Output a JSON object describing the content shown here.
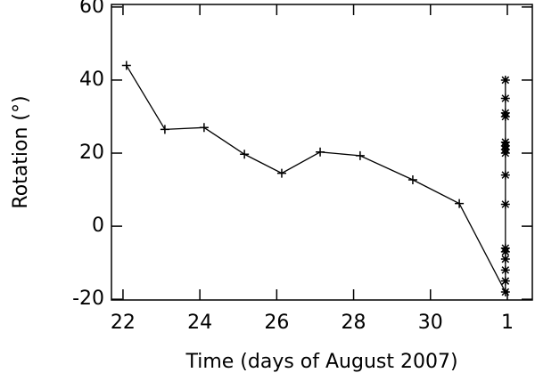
{
  "chart_data": {
    "type": "line",
    "x_label": "Time (days of August 2007)",
    "y_label": "Rotation (°)",
    "xlim": [
      21.7,
      32.65
    ],
    "ylim": [
      -20.2,
      60.7
    ],
    "xticks": [
      22,
      24,
      26,
      28,
      30,
      {
        "value": 32,
        "label": "1"
      }
    ],
    "yticks": [
      -20,
      0,
      20,
      40,
      60
    ],
    "series": [
      {
        "color": "#000000",
        "marker": "plus",
        "x": [
          22.09,
          23.09,
          24.11,
          25.16,
          26.13,
          27.13,
          28.17,
          29.54,
          30.75
        ],
        "values": [
          44,
          26.5,
          27,
          19.7,
          14.5,
          20.3,
          19.3,
          12.7,
          6.2
        ]
      },
      {
        "color": "#000000",
        "marker": "asterisk",
        "x": [
          31.95,
          31.95,
          31.95,
          31.95,
          31.95,
          31.95,
          31.95,
          31.95,
          31.95,
          31.95,
          31.95,
          31.95,
          31.95,
          31.95,
          31.95,
          31.95
        ],
        "values": [
          -18,
          -15,
          -12,
          -9,
          -7,
          -6,
          6,
          14,
          20,
          21,
          22,
          23,
          30,
          31,
          35,
          40
        ]
      }
    ]
  }
}
